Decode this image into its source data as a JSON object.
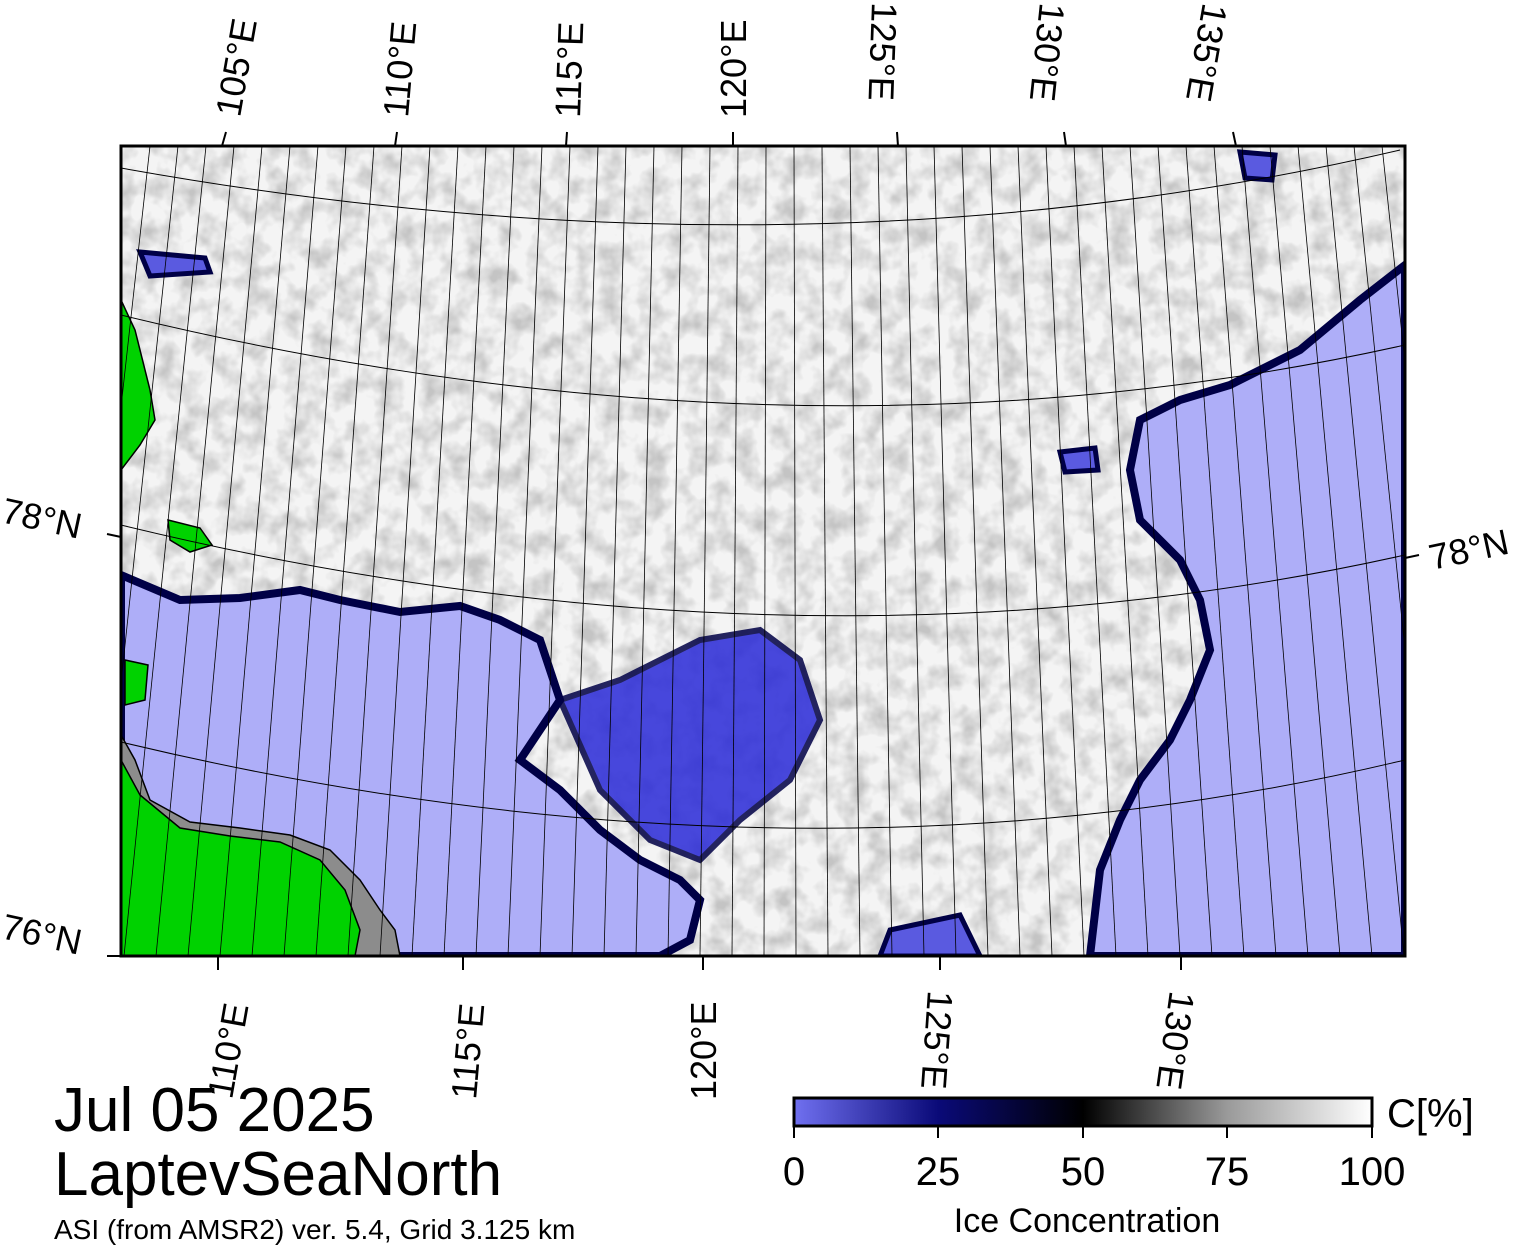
{
  "map": {
    "date": "Jul 05 2025",
    "region": "LaptevSeaNorth",
    "source": "ASI (from AMSR2) ver. 5.4,  Grid 3.125 km",
    "top_lon_labels": [
      "105°E",
      "110°E",
      "115°E",
      "120°E",
      "125°E",
      "130°E",
      "135°E"
    ],
    "bottom_lon_labels": [
      "110°E",
      "115°E",
      "120°E",
      "125°E",
      "130°E"
    ],
    "left_lat_labels": [
      "78°N",
      "76°N"
    ],
    "right_lat_labels": [
      "78°N"
    ],
    "colors": {
      "open_water": "#aeaef8",
      "land": "#00d200",
      "coast_gray": "#8c8c8c",
      "ice_high": "#ffffff",
      "ice_edge": "#000046",
      "frame": "#000000"
    }
  },
  "colorbar": {
    "title": "Ice Concentration",
    "unit": "C[%]",
    "ticks": [
      "0",
      "25",
      "50",
      "75",
      "100"
    ],
    "stops": [
      {
        "value": 0,
        "color": "#7070f0"
      },
      {
        "value": 25,
        "color": "#0a0a78"
      },
      {
        "value": 50,
        "color": "#000000"
      },
      {
        "value": 75,
        "color": "#9a9a9a"
      },
      {
        "value": 100,
        "color": "#ffffff"
      }
    ]
  }
}
